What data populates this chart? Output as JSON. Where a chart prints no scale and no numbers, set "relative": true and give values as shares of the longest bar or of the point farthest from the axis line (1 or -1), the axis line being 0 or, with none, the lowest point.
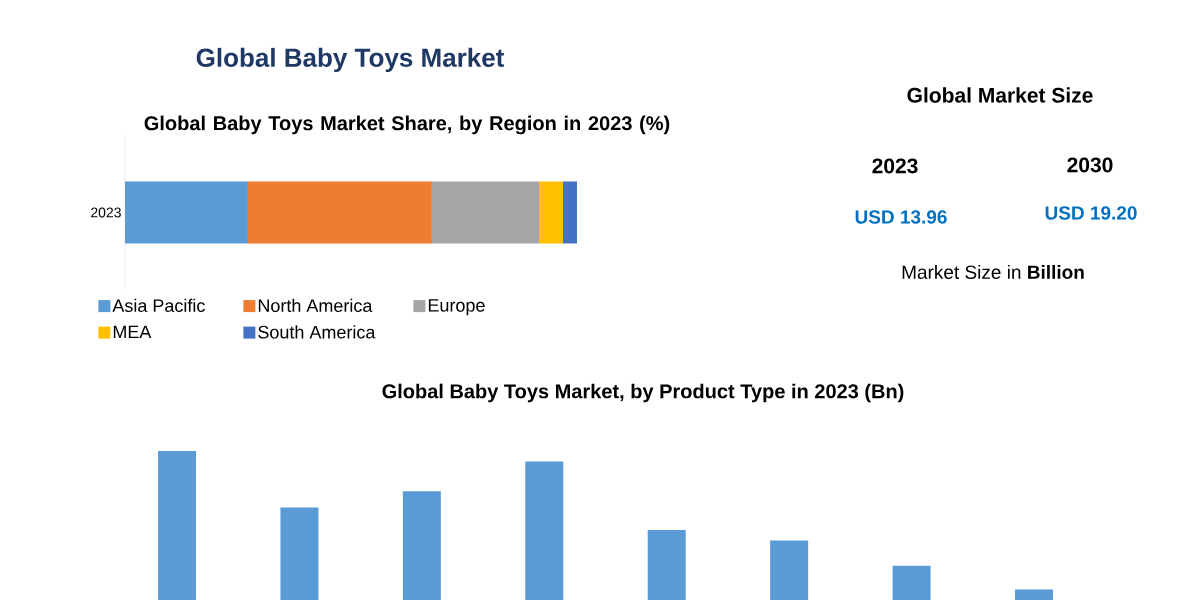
{
  "chart_data": [
    {
      "type": "bar",
      "title": "Global Baby Toys Market",
      "subtitle": "Global Baby Toys Market Share, by Region in 2023 (%)",
      "orientation": "horizontal",
      "stacked": true,
      "relative": true,
      "legend": "bottom",
      "categories": [
        "2023"
      ],
      "series": [
        {
          "name": "Asia Pacific",
          "color": "#5b9bd5",
          "values": [
            0.272
          ]
        },
        {
          "name": "North America",
          "color": "#ed7d31",
          "values": [
            0.407
          ]
        },
        {
          "name": "Europe",
          "color": "#a5a5a5",
          "values": [
            0.237
          ]
        },
        {
          "name": "MEA",
          "color": "#ffc000",
          "values": [
            0.053
          ]
        },
        {
          "name": "South America",
          "color": "#4472c4",
          "values": [
            0.031
          ]
        }
      ]
    },
    {
      "type": "other",
      "title": "Global Market Size",
      "annotations": [
        "2023",
        "2030",
        "USD 13.96",
        "USD 19.20",
        "Market Size in **Billion**"
      ]
    },
    {
      "type": "bar",
      "title": "Global Baby Toys Market, by Product Type in 2023 (Bn)",
      "relative": true,
      "categories": [
        null,
        null,
        null,
        null,
        null,
        null,
        null,
        null
      ],
      "color": "#5b9bd5",
      "values": [
        1,
        0.62,
        0.73,
        0.93,
        0.47,
        0.4,
        0.23,
        0.07
      ]
    }
  ]
}
